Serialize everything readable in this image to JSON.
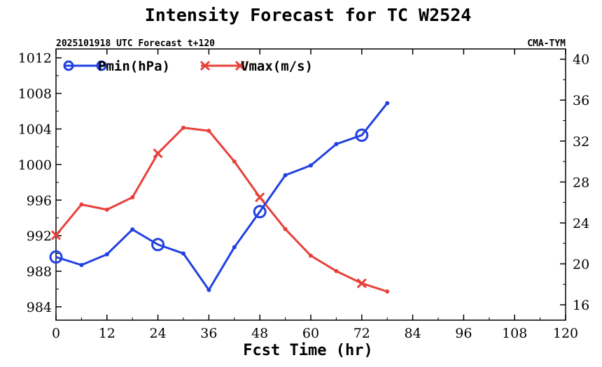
{
  "chart_data": {
    "type": "line",
    "title": "Intensity Forecast for TC W2524",
    "subtitle_left": "2025101918 UTC Forecast t+120",
    "subtitle_right": "CMA-TYM",
    "xlabel": "Fcst Time (hr)",
    "xlim": [
      0,
      120
    ],
    "xticks": [
      0,
      12,
      24,
      36,
      48,
      60,
      72,
      84,
      96,
      108,
      120
    ],
    "y_left": {
      "ylim": [
        982.5,
        1013
      ],
      "ticks": [
        984,
        988,
        992,
        996,
        1000,
        1004,
        1008,
        1012
      ]
    },
    "y_right": {
      "ylim": [
        14.5,
        41
      ],
      "ticks": [
        16,
        20,
        24,
        28,
        32,
        36,
        40
      ]
    },
    "legend": "top-left",
    "series": [
      {
        "name": "Pmin(hPa)",
        "axis": "left",
        "color": "#2140e0",
        "marker": "circle",
        "marker_every": 24,
        "x": [
          0,
          6,
          12,
          18,
          24,
          30,
          36,
          42,
          48,
          54,
          60,
          66,
          72,
          78
        ],
        "values": [
          989.6,
          988.7,
          989.9,
          992.7,
          991.0,
          990.0,
          985.9,
          990.7,
          994.7,
          998.8,
          999.9,
          1002.3,
          1003.3,
          1006.9
        ]
      },
      {
        "name": "Vmax(m/s)",
        "axis": "right",
        "color": "#e8403a",
        "marker": "x",
        "marker_every": 24,
        "x": [
          0,
          6,
          12,
          18,
          24,
          30,
          36,
          42,
          48,
          54,
          60,
          66,
          72,
          78
        ],
        "values": [
          22.8,
          25.8,
          25.3,
          26.5,
          30.8,
          33.3,
          33.0,
          30.0,
          26.5,
          23.4,
          20.8,
          19.3,
          18.1,
          17.3
        ]
      }
    ]
  }
}
